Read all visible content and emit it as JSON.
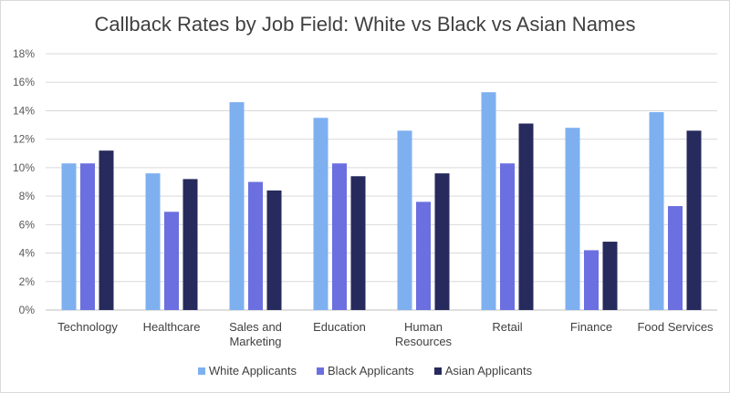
{
  "chart_data": {
    "type": "bar",
    "title": "Callback Rates by Job Field: White vs Black vs Asian Names",
    "xlabel": "",
    "ylabel": "",
    "ylim": [
      0,
      18
    ],
    "yticks": [
      0,
      2,
      4,
      6,
      8,
      10,
      12,
      14,
      16,
      18
    ],
    "ytick_labels": [
      "0%",
      "2%",
      "4%",
      "6%",
      "8%",
      "10%",
      "12%",
      "14%",
      "16%",
      "18%"
    ],
    "grid": true,
    "legend_position": "bottom",
    "categories": [
      "Technology",
      "Healthcare",
      "Sales and Marketing",
      "Education",
      "Human Resources",
      "Retail",
      "Finance",
      "Food Services"
    ],
    "category_label_lines": [
      [
        "Technology"
      ],
      [
        "Healthcare"
      ],
      [
        "Sales and",
        "Marketing"
      ],
      [
        "Education"
      ],
      [
        "Human",
        "Resources"
      ],
      [
        "Retail"
      ],
      [
        "Finance"
      ],
      [
        "Food Services"
      ]
    ],
    "series": [
      {
        "name": "White Applicants",
        "color": "#7eb0f0",
        "values": [
          10.3,
          9.6,
          14.6,
          13.5,
          12.6,
          15.3,
          12.8,
          13.9
        ]
      },
      {
        "name": "Black Applicants",
        "color": "#6b6fe0",
        "values": [
          10.3,
          6.9,
          9.0,
          10.3,
          7.6,
          10.3,
          4.2,
          7.3
        ]
      },
      {
        "name": "Asian Applicants",
        "color": "#262a5c",
        "values": [
          11.2,
          9.2,
          8.4,
          9.4,
          9.6,
          13.1,
          4.8,
          12.6
        ]
      }
    ]
  }
}
